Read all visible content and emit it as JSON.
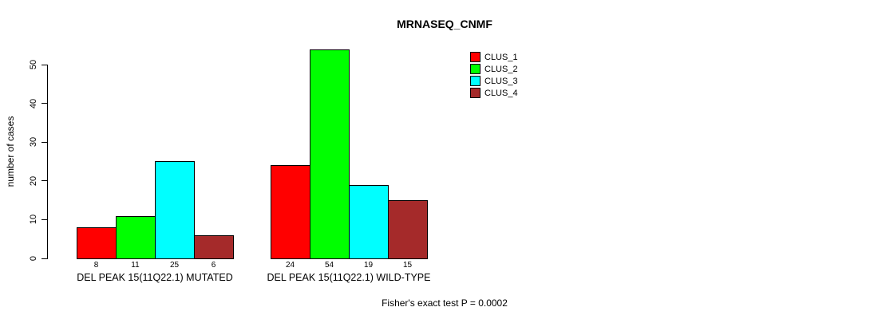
{
  "chart_data": {
    "type": "bar",
    "title": "MRNASEQ_CNMF",
    "ylabel": "number of cases",
    "footer": "Fisher's exact test P = 0.0002",
    "ylim": [
      0,
      50
    ],
    "yticks": [
      0,
      10,
      20,
      30,
      40,
      50
    ],
    "grid": false,
    "legend_position": "top-right",
    "categories": [
      "DEL PEAK 15(11Q22.1) MUTATED",
      "DEL PEAK 15(11Q22.1) WILD-TYPE"
    ],
    "series": [
      {
        "name": "CLUS_1",
        "color": "#ff0000",
        "values": [
          8,
          24
        ]
      },
      {
        "name": "CLUS_2",
        "color": "#00ff00",
        "values": [
          11,
          54
        ]
      },
      {
        "name": "CLUS_3",
        "color": "#00ffff",
        "values": [
          25,
          19
        ]
      },
      {
        "name": "CLUS_4",
        "color": "#a52a2a",
        "values": [
          6,
          15
        ]
      }
    ],
    "bar_value_labels": [
      [
        8,
        11,
        25,
        6
      ],
      [
        24,
        54,
        19,
        15
      ]
    ]
  }
}
